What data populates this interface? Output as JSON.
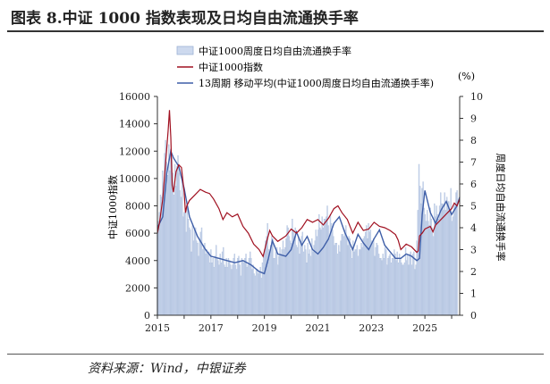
{
  "title": "图表 8.中证 1000 指数表现及日均自由流通换手率",
  "source": "资料来源：Wind，中银证券",
  "chart_data": {
    "type": "bar+line",
    "x_ticks": [
      "2015",
      "2017",
      "2019",
      "2021",
      "2023",
      "2025"
    ],
    "x_range": [
      2015.0,
      2026.3
    ],
    "y_left": {
      "label": "中证1000指数",
      "range": [
        0,
        16000
      ],
      "ticks": [
        0,
        2000,
        4000,
        6000,
        8000,
        10000,
        12000,
        14000,
        16000
      ]
    },
    "y_right": {
      "label": "周度日均自由流通换手率",
      "unit": "(%)",
      "range": [
        0,
        10
      ],
      "ticks": [
        0,
        1,
        2,
        3,
        4,
        5,
        6,
        7,
        8,
        9,
        10
      ]
    },
    "legend": [
      "中证1000周度日均自由流通换手率",
      "中证1000指数",
      "13周期 移动平均(中证1000周度日均自由流通换手率)"
    ],
    "colors": {
      "bar_fill": "#cdd9ee",
      "bar_edge": "#9fb3d6",
      "index_line": "#a01020",
      "ma_line": "#3f5fa8",
      "axis": "#333333"
    },
    "index_series": {
      "x": [
        2015.0,
        2015.08,
        2015.2,
        2015.3,
        2015.4,
        2015.45,
        2015.5,
        2015.55,
        2015.6,
        2015.7,
        2015.8,
        2015.9,
        2016.0,
        2016.05,
        2016.1,
        2016.2,
        2016.4,
        2016.6,
        2016.8,
        2016.95,
        2017.1,
        2017.3,
        2017.45,
        2017.6,
        2017.8,
        2018.0,
        2018.2,
        2018.4,
        2018.6,
        2018.8,
        2018.95,
        2019.1,
        2019.2,
        2019.3,
        2019.5,
        2019.8,
        2020.0,
        2020.2,
        2020.4,
        2020.6,
        2020.8,
        2021.0,
        2021.2,
        2021.4,
        2021.6,
        2021.75,
        2021.9,
        2022.1,
        2022.3,
        2022.5,
        2022.7,
        2022.9,
        2023.1,
        2023.3,
        2023.5,
        2023.7,
        2023.9,
        2024.0,
        2024.1,
        2024.3,
        2024.5,
        2024.7,
        2024.75,
        2024.8,
        2024.9,
        2025.0,
        2025.2,
        2025.3,
        2025.4,
        2025.6,
        2025.8,
        2026.0,
        2026.1,
        2026.2,
        2026.3
      ],
      "values": [
        6000,
        6800,
        8500,
        11000,
        13500,
        15000,
        13000,
        9500,
        9000,
        10500,
        11000,
        10800,
        9000,
        7500,
        8000,
        8400,
        8800,
        9200,
        9000,
        8900,
        8500,
        7800,
        7000,
        7500,
        7200,
        7400,
        6500,
        6000,
        5200,
        4800,
        4300,
        5500,
        6200,
        5800,
        5400,
        5800,
        6300,
        6000,
        6400,
        7000,
        6800,
        7000,
        6600,
        7100,
        7800,
        8000,
        7500,
        7000,
        6000,
        6800,
        6200,
        6300,
        6800,
        6500,
        6400,
        6200,
        5900,
        5500,
        4800,
        5200,
        5000,
        4600,
        4700,
        5800,
        6000,
        6300,
        6500,
        6100,
        6600,
        7000,
        7400,
        7800,
        8200,
        8000,
        8500
      ]
    },
    "turnover_ma_series": {
      "x": [
        2015.0,
        2015.2,
        2015.35,
        2015.5,
        2015.6,
        2015.8,
        2016.0,
        2016.2,
        2016.5,
        2016.8,
        2017.0,
        2017.3,
        2017.6,
        2017.9,
        2018.2,
        2018.5,
        2018.8,
        2019.0,
        2019.15,
        2019.3,
        2019.5,
        2019.8,
        2020.0,
        2020.2,
        2020.4,
        2020.6,
        2020.8,
        2021.0,
        2021.2,
        2021.4,
        2021.6,
        2021.8,
        2022.0,
        2022.3,
        2022.5,
        2022.7,
        2022.9,
        2023.1,
        2023.3,
        2023.5,
        2023.7,
        2023.9,
        2024.1,
        2024.3,
        2024.5,
        2024.7,
        2024.8,
        2024.9,
        2025.0,
        2025.2,
        2025.4,
        2025.6,
        2025.8,
        2026.0,
        2026.2,
        2026.3
      ],
      "values": [
        4.0,
        4.5,
        6.5,
        7.5,
        7.2,
        6.8,
        5.8,
        4.5,
        3.6,
        3.0,
        2.7,
        2.6,
        2.5,
        2.4,
        2.5,
        2.3,
        2.0,
        1.9,
        2.6,
        3.4,
        2.8,
        2.7,
        3.0,
        3.8,
        3.2,
        3.6,
        3.0,
        2.8,
        3.1,
        3.5,
        4.2,
        4.5,
        3.8,
        3.0,
        3.7,
        3.3,
        3.0,
        3.5,
        3.9,
        3.2,
        2.9,
        2.6,
        2.6,
        2.8,
        2.7,
        2.5,
        2.6,
        4.6,
        5.7,
        4.7,
        4.2,
        4.8,
        5.2,
        4.6,
        5.0,
        5.4
      ]
    },
    "turnover_weekly_bars": {
      "x_start": 2015.0,
      "x_step": 0.0385,
      "values": [
        3.7,
        4.3,
        4.7,
        5.5,
        5.4,
        6.6,
        5.8,
        7.4,
        8.0,
        7.0,
        6.4,
        7.8,
        6.6,
        7.6,
        7.2,
        6.5,
        5.5,
        6.9,
        5.9,
        6.8,
        7.3,
        6.5,
        5.7,
        5.4,
        6.1,
        4.5,
        4.7,
        4.7,
        3.8,
        5.0,
        4.4,
        4.0,
        3.9,
        2.9,
        4.1,
        3.4,
        3.9,
        4.0,
        3.4,
        3.3,
        2.7,
        3.4,
        3.8,
        4.0,
        3.0,
        3.2,
        3.3,
        2.8,
        3.0,
        2.8,
        2.9,
        2.4,
        3.0,
        2.4,
        2.6,
        2.2,
        2.7,
        3.2,
        2.6,
        2.5,
        2.3,
        2.8,
        2.4,
        2.9,
        3.1,
        2.3,
        2.2,
        2.6,
        2.2,
        2.6,
        2.5,
        2.3,
        2.1,
        2.3,
        2.6,
        2.8,
        2.3,
        2.1,
        2.6,
        2.7,
        2.3,
        1.8,
        2.6,
        2.5,
        2.4,
        2.6,
        2.8,
        2.2,
        2.3,
        2.6,
        2.9,
        2.6,
        2.1,
        2.3,
        1.9,
        1.8,
        2.1,
        2.1,
        1.9,
        2.0,
        2.2,
        1.7,
        2.4,
        2.7,
        3.0,
        3.4,
        3.6,
        4.2,
        3.0,
        2.8,
        3.2,
        3.6,
        3.5,
        2.6,
        2.6,
        2.9,
        3.1,
        2.3,
        2.7,
        3.1,
        2.8,
        3.0,
        3.4,
        3.0,
        3.1,
        3.5,
        4.1,
        4.0,
        3.6,
        3.4,
        3.3,
        4.4,
        3.9,
        3.6,
        4.0,
        3.2,
        3.1,
        3.6,
        2.8,
        3.4,
        3.6,
        3.8,
        2.9,
        3.2,
        3.0,
        2.4,
        3.3,
        2.8,
        3.0,
        2.7,
        3.5,
        2.9,
        3.2,
        3.4,
        3.9,
        3.6,
        3.9,
        4.6,
        4.0,
        3.9,
        4.5,
        4.0,
        4.4,
        4.4,
        4.5,
        5.0,
        4.1,
        3.5,
        4.6,
        4.2,
        3.9,
        3.6,
        3.2,
        3.3,
        3.3,
        2.8,
        3.2,
        2.9,
        3.4,
        3.7,
        3.7,
        3.6,
        3.9,
        4.1,
        3.6,
        3.2,
        3.6,
        3.5,
        3.0,
        2.6,
        3.4,
        2.9,
        3.0,
        3.0,
        3.2,
        2.7,
        3.0,
        3.0,
        3.3,
        3.1,
        3.5,
        3.6,
        3.8,
        4.1,
        3.5,
        4.2,
        3.8,
        3.9,
        3.4,
        3.3,
        3.5,
        2.7,
        3.1,
        3.3,
        3.2,
        2.8,
        2.6,
        2.6,
        2.5,
        2.8,
        2.6,
        3.1,
        3.0,
        2.3,
        2.6,
        2.7,
        2.8,
        2.4,
        2.6,
        2.6,
        3.0,
        2.8,
        2.5,
        2.9,
        2.4,
        2.8,
        2.6,
        2.4,
        2.3,
        2.3,
        2.4,
        3.1,
        2.5,
        2.8,
        2.3,
        2.8,
        2.9,
        2.3,
        2.8,
        2.9,
        2.1,
        2.3,
        3.4,
        4.8,
        6.9,
        5.9,
        5.1,
        5.8,
        6.1,
        4.9,
        4.6,
        4.3,
        4.8,
        4.3,
        4.1,
        4.9,
        4.4,
        4.0,
        3.6,
        5.1,
        4.5,
        5.0,
        4.6,
        4.4,
        5.0,
        5.6,
        5.1,
        5.1,
        4.8,
        5.6,
        4.8,
        5.4,
        5.2,
        5.2,
        4.8,
        5.8,
        4.3,
        4.5,
        5.0,
        5.1,
        5.6,
        5.7
      ]
    }
  }
}
